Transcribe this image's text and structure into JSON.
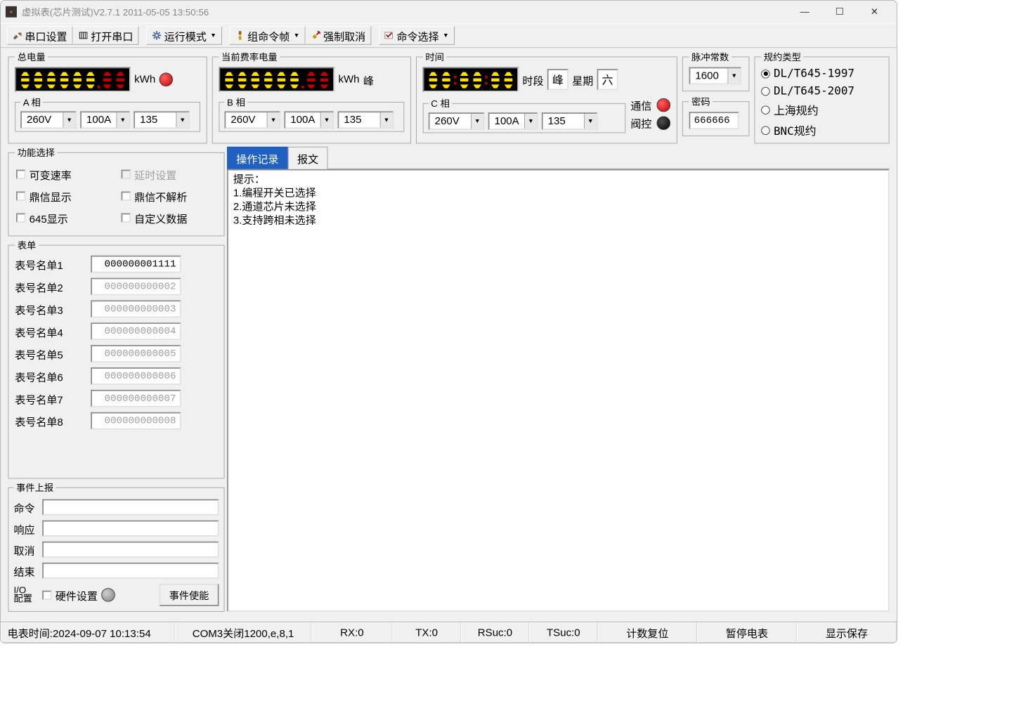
{
  "window": {
    "title": "虚拟表(芯片测试)V2.7.1 2011-05-05 13:50:56"
  },
  "toolbar": {
    "serial_settings": "串口设置",
    "open_serial": "打开串口",
    "run_mode": "运行模式",
    "group_cmd": "组命令帧",
    "force_cancel": "强制取消",
    "cmd_select": "命令选择"
  },
  "panels": {
    "total_energy": {
      "title": "总电量",
      "unit": "kWh"
    },
    "rate_energy": {
      "title": "当前费率电量",
      "unit": "kWh",
      "tag": "峰"
    },
    "time": {
      "title": "时间",
      "period_label": "时段",
      "period_val": "峰",
      "week_label": "星期",
      "week_val": "六"
    },
    "commstatus": {
      "comm": "通信",
      "valve": "阀控"
    },
    "pulse": {
      "title": "脉冲常数",
      "value": "1600"
    },
    "password": {
      "title": "密码",
      "value": "666666"
    },
    "protocol": {
      "title": "规约类型",
      "opts": [
        "DL/T645-1997",
        "DL/T645-2007",
        "上海规约",
        "BNC规约"
      ],
      "selected": 0
    }
  },
  "phases": {
    "a": {
      "title": "A 相",
      "v": "260V",
      "i": "100A",
      "p": "135"
    },
    "b": {
      "title": "B 相",
      "v": "260V",
      "i": "100A",
      "p": "135"
    },
    "c": {
      "title": "C 相",
      "v": "260V",
      "i": "100A",
      "p": "135"
    }
  },
  "funcsel": {
    "title": "功能选择",
    "varrate": "可变速率",
    "delay": "延时设置",
    "dingxin": "鼎信显示",
    "dingxin_np": "鼎信不解析",
    "d645": "645显示",
    "custom": "自定义数据"
  },
  "form": {
    "title": "表单",
    "items": [
      {
        "label": "表号名单1",
        "value": "000000001111",
        "disabled": false
      },
      {
        "label": "表号名单2",
        "value": "000000000002",
        "disabled": true
      },
      {
        "label": "表号名单3",
        "value": "000000000003",
        "disabled": true
      },
      {
        "label": "表号名单4",
        "value": "000000000004",
        "disabled": true
      },
      {
        "label": "表号名单5",
        "value": "000000000005",
        "disabled": true
      },
      {
        "label": "表号名单6",
        "value": "000000000006",
        "disabled": true
      },
      {
        "label": "表号名单7",
        "value": "000000000007",
        "disabled": true
      },
      {
        "label": "表号名单8",
        "value": "000000000008",
        "disabled": true
      }
    ]
  },
  "events": {
    "title": "事件上报",
    "cmd": "命令",
    "resp": "响应",
    "cancel": "取消",
    "end": "结束",
    "io": "I/O\n配置",
    "hw": "硬件设置",
    "enable": "事件使能"
  },
  "tabs": {
    "log": "操作记录",
    "msg": "报文"
  },
  "log": {
    "text": "提示：\n1.编程开关已选择\n2.通道芯片未选择\n3.支持跨相未选择"
  },
  "statusbar": {
    "clock": "电表时间:2024-09-07 10:13:54",
    "com": "COM3关闭1200,e,8,1",
    "rx": "RX:0",
    "tx": "TX:0",
    "rsuc": "RSuc:0",
    "tsuc": "TSuc:0",
    "count_reset": "计数复位",
    "pause": "暂停电表",
    "save": "显示保存"
  },
  "colors": {
    "led_red": "#c00000",
    "led_black": "#000000",
    "lcd_yellow": "#ffe000",
    "lcd_red": "#c00000",
    "active_tab_bg": "#2060c0",
    "active_tab_fg": "#ffffff",
    "window_bg": "#f0f0f0"
  }
}
